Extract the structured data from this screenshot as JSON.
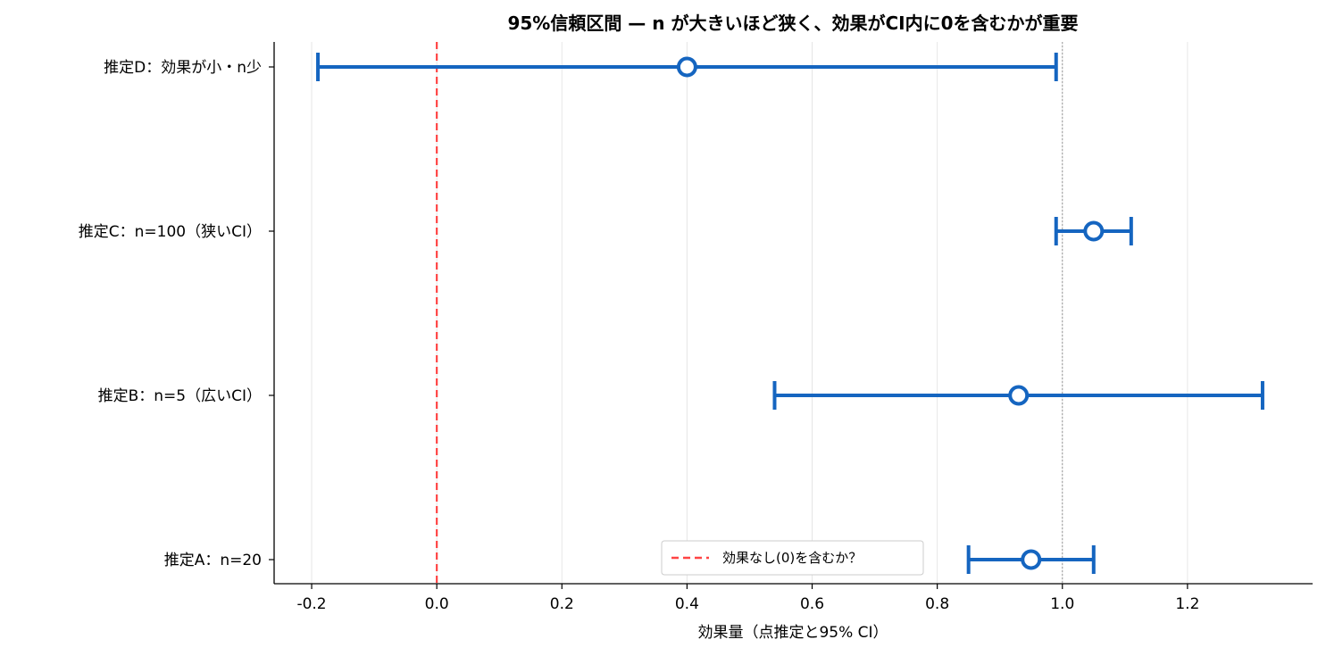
{
  "chart_data": {
    "type": "errorbar",
    "title": "95%信頼区間 — n が大きいほど狭く、効果がCI内に0を含むかが重要",
    "xlabel": "効果量（点推定と95% CI）",
    "ylabel": "",
    "xlim": [
      -0.26,
      1.4
    ],
    "xticks": [
      "-0.2",
      "0.0",
      "0.2",
      "0.4",
      "0.6",
      "0.8",
      "1.0",
      "1.2"
    ],
    "grid": "vertical",
    "legend_position": "bottom-center",
    "legend": [
      {
        "label": "効果なし(0)を含むか？",
        "style": "dashed",
        "color": "#ff4444"
      }
    ],
    "reference_lines": [
      {
        "x": 0.0,
        "color": "#ff4444",
        "style": "dashed"
      },
      {
        "x": 1.0,
        "color": "#999999",
        "style": "dotted"
      }
    ],
    "series_color": "#1565c0",
    "estimates": [
      {
        "label": "推定A：n=20",
        "point": 0.95,
        "ci_low": 0.85,
        "ci_high": 1.05
      },
      {
        "label": "推定B：n=5（広いCI）",
        "point": 0.93,
        "ci_low": 0.54,
        "ci_high": 1.32
      },
      {
        "label": "推定C：n=100（狭いCI）",
        "point": 1.05,
        "ci_low": 0.99,
        "ci_high": 1.11
      },
      {
        "label": "推定D：効果が小・n少",
        "point": 0.4,
        "ci_low": -0.19,
        "ci_high": 0.99
      }
    ]
  }
}
